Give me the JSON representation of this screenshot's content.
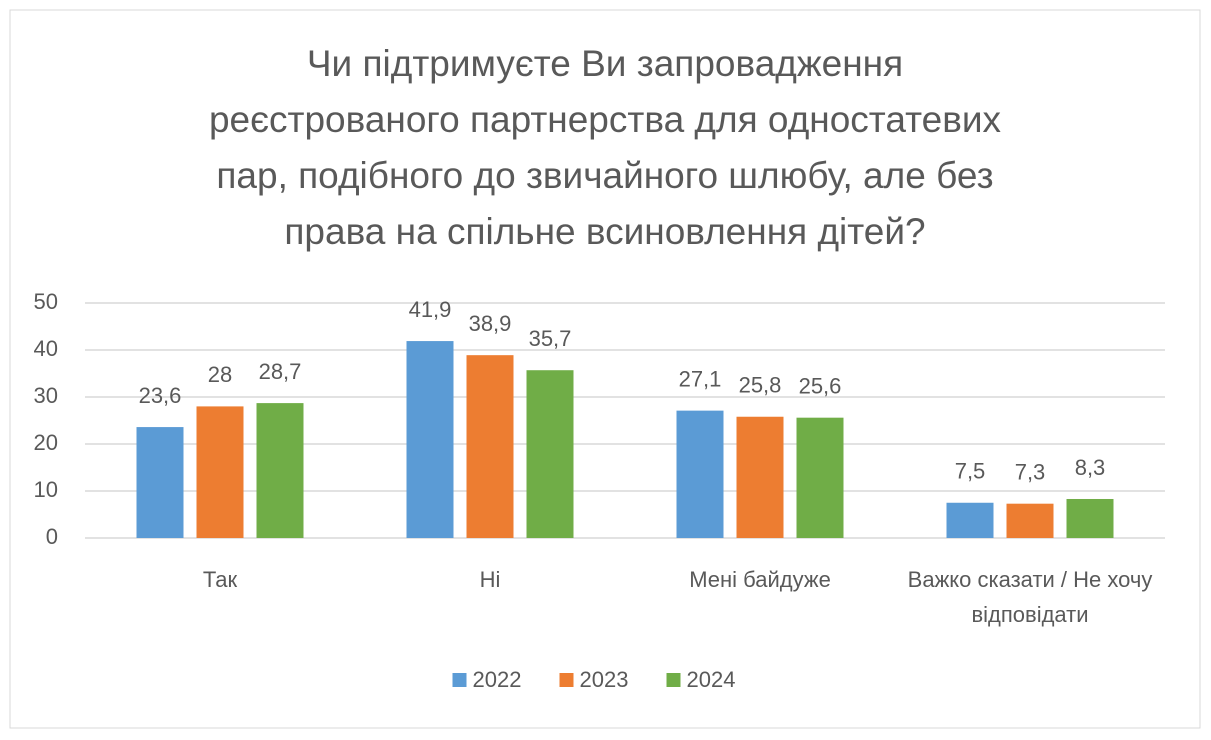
{
  "chart_data": {
    "type": "bar",
    "title": [
      "Чи підтримуєте Ви запровадження",
      "реєстрованого партнерства для одностатевих",
      "пар, подібного до звичайного шлюбу, але без",
      "права на спільне всиновлення дітей?"
    ],
    "categories": [
      "Так",
      "Ні",
      "Мені байдуже",
      "Важко сказати / Не хочу відповідати"
    ],
    "series": [
      {
        "name": "2022",
        "color": "#5b9bd5",
        "values": [
          23.6,
          41.9,
          27.1,
          7.5
        ],
        "value_labels": [
          "23,6",
          "41,9",
          "27,1",
          "7,5"
        ]
      },
      {
        "name": "2023",
        "color": "#ed7d31",
        "values": [
          28,
          38.9,
          25.8,
          7.3
        ],
        "value_labels": [
          "28",
          "38,9",
          "25,8",
          "7,3"
        ]
      },
      {
        "name": "2024",
        "color": "#70ad47",
        "values": [
          28.7,
          35.7,
          25.6,
          8.3
        ],
        "value_labels": [
          "28,7",
          "35,7",
          "25,6",
          "8,3"
        ]
      }
    ],
    "ylim": [
      0,
      50
    ],
    "yticks": [
      0,
      10,
      20,
      30,
      40,
      50
    ],
    "grid": true,
    "legend": "bottom"
  }
}
